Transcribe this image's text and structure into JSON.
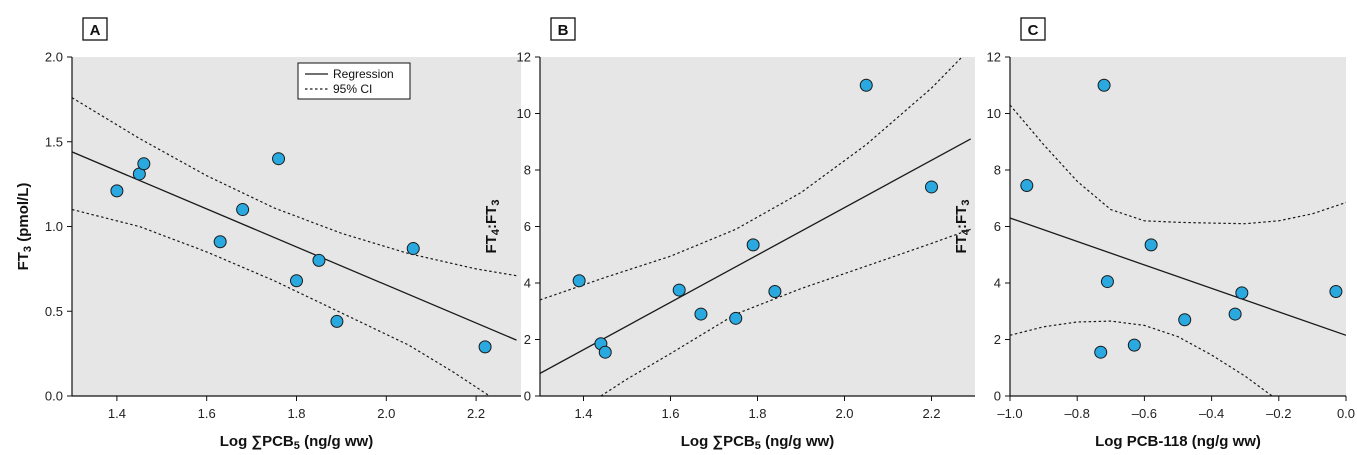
{
  "colors": {
    "plot_bg": "#e6e6e6",
    "point_fill": "#29a9df",
    "point_stroke": "#1a1a1a",
    "line": "#1a1a1a"
  },
  "legend": {
    "regression_label": "Regression",
    "ci_label": "95% CI"
  },
  "chart_data": [
    {
      "panel": "A",
      "type": "scatter",
      "xlabel_prefix": "Log ",
      "xlabel_main": "∑PCB",
      "xlabel_sub": "5",
      "xlabel_suffix": " (ng/g ww)",
      "ylabel_main": "FT",
      "ylabel_sub": "3",
      "ylabel_suffix": " (pmol/L)",
      "xlim": [
        1.3,
        2.3
      ],
      "ylim": [
        0.0,
        2.0
      ],
      "xticks": [
        1.4,
        1.6,
        1.8,
        2.0,
        2.2
      ],
      "xtick_labels": [
        "1.4",
        "1.6",
        "1.8",
        "2.0",
        "2.2"
      ],
      "yticks": [
        0.0,
        0.5,
        1.0,
        1.5,
        2.0
      ],
      "ytick_labels": [
        "0.0",
        "0.5",
        "1.0",
        "1.5",
        "2.0"
      ],
      "points": [
        {
          "x": 1.4,
          "y": 1.21
        },
        {
          "x": 1.45,
          "y": 1.31
        },
        {
          "x": 1.46,
          "y": 1.37
        },
        {
          "x": 1.63,
          "y": 0.91
        },
        {
          "x": 1.68,
          "y": 1.1
        },
        {
          "x": 1.76,
          "y": 1.4
        },
        {
          "x": 1.8,
          "y": 0.68
        },
        {
          "x": 1.85,
          "y": 0.8
        },
        {
          "x": 1.89,
          "y": 0.44
        },
        {
          "x": 2.06,
          "y": 0.87
        },
        {
          "x": 2.22,
          "y": 0.29
        }
      ],
      "regression": [
        {
          "x": 1.3,
          "y": 1.44
        },
        {
          "x": 2.29,
          "y": 0.33
        }
      ],
      "ci_upper": [
        {
          "x": 1.3,
          "y": 1.76
        },
        {
          "x": 1.45,
          "y": 1.52
        },
        {
          "x": 1.6,
          "y": 1.3
        },
        {
          "x": 1.75,
          "y": 1.11
        },
        {
          "x": 1.9,
          "y": 0.96
        },
        {
          "x": 2.05,
          "y": 0.84
        },
        {
          "x": 2.2,
          "y": 0.75
        },
        {
          "x": 2.29,
          "y": 0.71
        }
      ],
      "ci_lower": [
        {
          "x": 1.3,
          "y": 1.1
        },
        {
          "x": 1.45,
          "y": 1.0
        },
        {
          "x": 1.6,
          "y": 0.85
        },
        {
          "x": 1.75,
          "y": 0.68
        },
        {
          "x": 1.9,
          "y": 0.49
        },
        {
          "x": 2.05,
          "y": 0.3
        },
        {
          "x": 2.15,
          "y": 0.14
        },
        {
          "x": 2.23,
          "y": 0.0
        }
      ],
      "legend": true
    },
    {
      "panel": "B",
      "type": "scatter",
      "xlabel_prefix": "Log ",
      "xlabel_main": "∑PCB",
      "xlabel_sub": "5",
      "xlabel_suffix": " (ng/g ww)",
      "ylabel_main": "FT",
      "ylabel_sub": "4",
      "ylabel_mid": ":FT",
      "ylabel_sub2": "3",
      "ylabel_suffix": "",
      "xlim": [
        1.3,
        2.3
      ],
      "ylim": [
        0,
        12
      ],
      "xticks": [
        1.4,
        1.6,
        1.8,
        2.0,
        2.2
      ],
      "xtick_labels": [
        "1.4",
        "1.6",
        "1.8",
        "2.0",
        "2.2"
      ],
      "yticks": [
        0,
        2,
        4,
        6,
        8,
        10,
        12
      ],
      "ytick_labels": [
        "0",
        "2",
        "4",
        "6",
        "8",
        "10",
        "12"
      ],
      "points": [
        {
          "x": 1.39,
          "y": 4.08
        },
        {
          "x": 1.44,
          "y": 1.85
        },
        {
          "x": 1.45,
          "y": 1.55
        },
        {
          "x": 1.62,
          "y": 3.75
        },
        {
          "x": 1.67,
          "y": 2.9
        },
        {
          "x": 1.75,
          "y": 2.75
        },
        {
          "x": 1.79,
          "y": 5.35
        },
        {
          "x": 1.84,
          "y": 3.7
        },
        {
          "x": 2.05,
          "y": 11.0
        },
        {
          "x": 2.2,
          "y": 7.4
        }
      ],
      "regression": [
        {
          "x": 1.3,
          "y": 0.8
        },
        {
          "x": 2.29,
          "y": 9.1
        }
      ],
      "ci_upper": [
        {
          "x": 1.3,
          "y": 3.4
        },
        {
          "x": 1.45,
          "y": 4.2
        },
        {
          "x": 1.6,
          "y": 4.95
        },
        {
          "x": 1.75,
          "y": 5.9
        },
        {
          "x": 1.9,
          "y": 7.2
        },
        {
          "x": 2.05,
          "y": 8.9
        },
        {
          "x": 2.2,
          "y": 10.9
        },
        {
          "x": 2.27,
          "y": 12.0
        }
      ],
      "ci_lower": [
        {
          "x": 1.44,
          "y": 0.0
        },
        {
          "x": 1.5,
          "y": 0.6
        },
        {
          "x": 1.6,
          "y": 1.5
        },
        {
          "x": 1.75,
          "y": 2.9
        },
        {
          "x": 1.9,
          "y": 3.8
        },
        {
          "x": 2.05,
          "y": 4.6
        },
        {
          "x": 2.2,
          "y": 5.4
        },
        {
          "x": 2.29,
          "y": 5.9
        }
      ],
      "legend": false
    },
    {
      "panel": "C",
      "type": "scatter",
      "xlabel_prefix": "Log ",
      "xlabel_main": "PCB-118",
      "xlabel_sub": "",
      "xlabel_suffix": " (ng/g ww)",
      "ylabel_main": "FT",
      "ylabel_sub": "4",
      "ylabel_mid": ":FT",
      "ylabel_sub2": "3",
      "ylabel_suffix": "",
      "xlim": [
        -1.0,
        0.0
      ],
      "ylim": [
        0,
        12
      ],
      "xticks": [
        -1.0,
        -0.8,
        -0.6,
        -0.4,
        -0.2,
        0.0
      ],
      "xtick_labels": [
        "–1.0",
        "–0.8",
        "–0.6",
        "–0.4",
        "–0.2",
        "0.0"
      ],
      "yticks": [
        0,
        2,
        4,
        6,
        8,
        10,
        12
      ],
      "ytick_labels": [
        "0",
        "2",
        "4",
        "6",
        "8",
        "10",
        "12"
      ],
      "points": [
        {
          "x": -0.95,
          "y": 7.45
        },
        {
          "x": -0.72,
          "y": 11.0
        },
        {
          "x": -0.71,
          "y": 4.05
        },
        {
          "x": -0.73,
          "y": 1.55
        },
        {
          "x": -0.63,
          "y": 1.8
        },
        {
          "x": -0.58,
          "y": 5.35
        },
        {
          "x": -0.48,
          "y": 2.7
        },
        {
          "x": -0.33,
          "y": 2.9
        },
        {
          "x": -0.31,
          "y": 3.65
        },
        {
          "x": -0.03,
          "y": 3.7
        }
      ],
      "regression": [
        {
          "x": -1.0,
          "y": 6.3
        },
        {
          "x": 0.0,
          "y": 2.15
        }
      ],
      "ci_upper": [
        {
          "x": -1.0,
          "y": 10.3
        },
        {
          "x": -0.9,
          "y": 8.9
        },
        {
          "x": -0.8,
          "y": 7.6
        },
        {
          "x": -0.7,
          "y": 6.6
        },
        {
          "x": -0.6,
          "y": 6.2
        },
        {
          "x": -0.5,
          "y": 6.15
        },
        {
          "x": -0.4,
          "y": 6.12
        },
        {
          "x": -0.3,
          "y": 6.1
        },
        {
          "x": -0.2,
          "y": 6.2
        },
        {
          "x": -0.1,
          "y": 6.45
        },
        {
          "x": 0.0,
          "y": 6.85
        }
      ],
      "ci_lower": [
        {
          "x": -1.0,
          "y": 2.15
        },
        {
          "x": -0.9,
          "y": 2.45
        },
        {
          "x": -0.8,
          "y": 2.62
        },
        {
          "x": -0.7,
          "y": 2.65
        },
        {
          "x": -0.6,
          "y": 2.5
        },
        {
          "x": -0.5,
          "y": 2.1
        },
        {
          "x": -0.4,
          "y": 1.45
        },
        {
          "x": -0.3,
          "y": 0.7
        },
        {
          "x": -0.22,
          "y": 0.0
        }
      ],
      "legend": false
    }
  ]
}
